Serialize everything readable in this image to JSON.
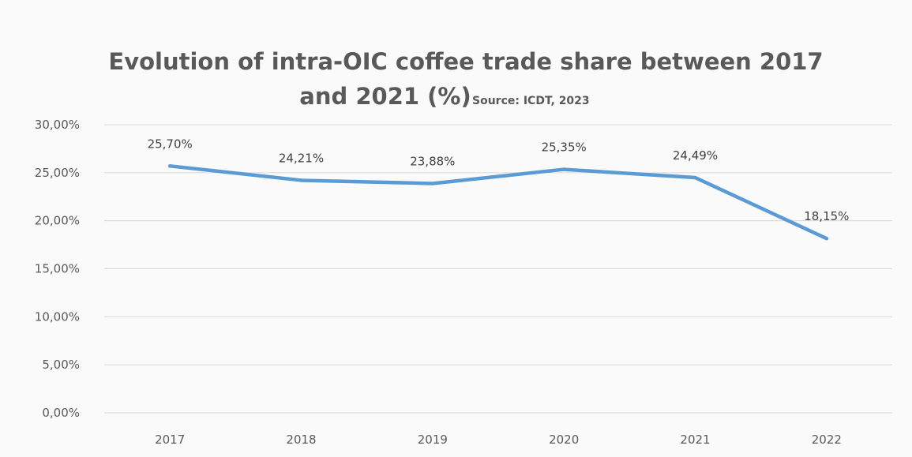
{
  "chart_data": {
    "type": "line",
    "title": "Evolution of intra-OIC coffee trade share between 2017 and 2021 (%)",
    "title_line1": "Evolution of intra-OIC coffee trade share between 2017",
    "title_line2": "and 2021 (%)",
    "source": "Source: ICDT, 2023",
    "xlabel": "",
    "ylabel": "",
    "categories": [
      "2017",
      "2018",
      "2019",
      "2020",
      "2021",
      "2022"
    ],
    "series": [
      {
        "values": [
          25.7,
          24.21,
          23.88,
          25.35,
          24.49,
          18.15
        ],
        "labels": [
          "25,70%",
          "24,21%",
          "23,88%",
          "25,35%",
          "24,49%",
          "18,15%"
        ],
        "color": "#5b9bd5"
      }
    ],
    "ylim": [
      0,
      30
    ],
    "yticks": [
      0,
      5,
      10,
      15,
      20,
      25,
      30
    ],
    "ytick_labels": [
      "0,00%",
      "5,00%",
      "10,00%",
      "15,00%",
      "20,00%",
      "25,00%",
      "30,00%"
    ],
    "grid": true,
    "legend": "none"
  }
}
